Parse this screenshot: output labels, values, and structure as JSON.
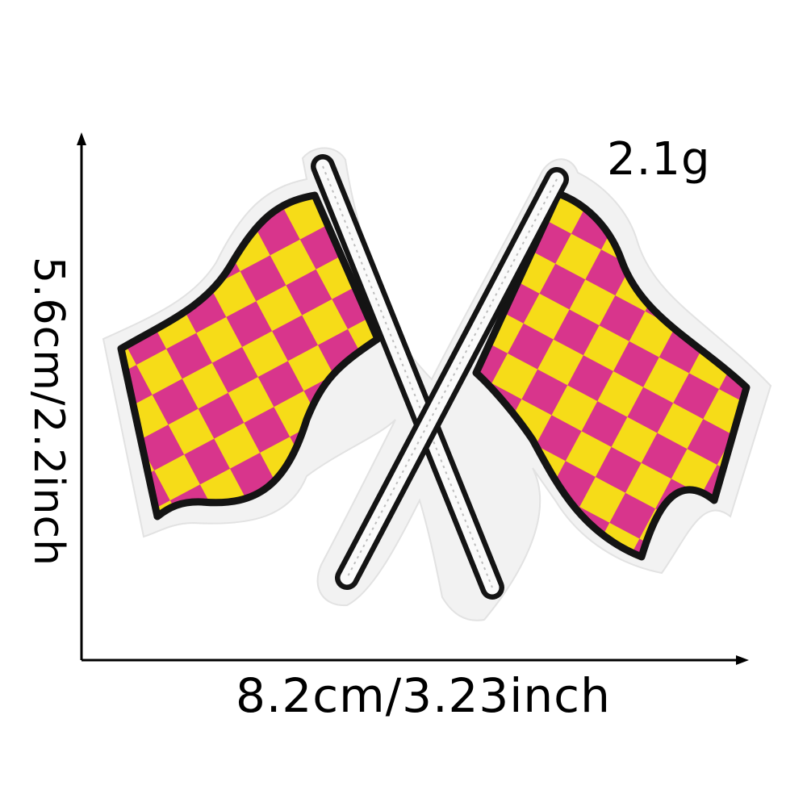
{
  "product": {
    "weight": "2.1g",
    "width": "8.2cm/3.23inch",
    "height": "5.6cm/2.2inch"
  },
  "colors": {
    "pink": "#d8358c",
    "yellow": "#f6dc18",
    "outline": "#141414",
    "felt": "#f2f2f2",
    "pole": "#fafafa"
  },
  "icons": {
    "patch": "checkered-flags-patch-icon"
  }
}
